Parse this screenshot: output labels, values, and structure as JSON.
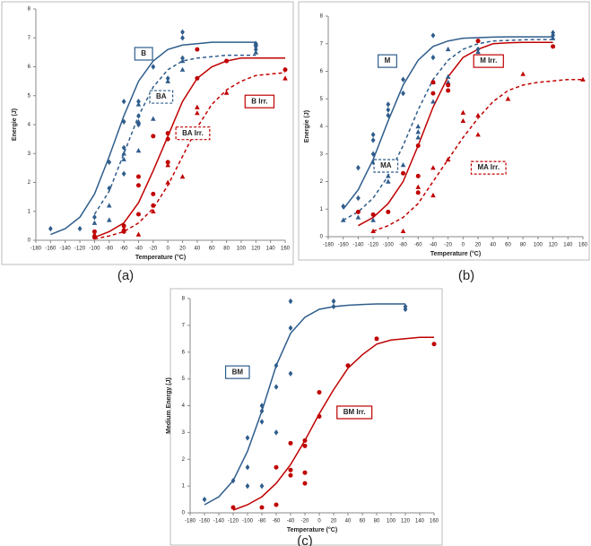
{
  "chart_data": [
    {
      "type": "scatter",
      "caption": "(a)",
      "xlabel": "Temperature (°C)",
      "ylabel": "Energie (J)",
      "xlim": [
        -180,
        160
      ],
      "ylim": [
        0,
        8
      ],
      "xticks": [
        -180,
        -160,
        -140,
        -120,
        -100,
        -80,
        -60,
        -40,
        -20,
        0,
        20,
        40,
        60,
        80,
        100,
        120,
        140,
        160
      ],
      "yticks": [
        0,
        1,
        2,
        3,
        4,
        5,
        6,
        7,
        8
      ],
      "series": [
        {
          "color": "#2f5d8c",
          "marker": "diamond",
          "x": [
            -160,
            -120,
            -100,
            -80,
            -80,
            -60,
            -60,
            -60,
            -60,
            -40,
            -40,
            -40,
            -20,
            -20,
            0,
            20,
            20,
            20,
            120,
            120,
            120
          ],
          "values": [
            0.4,
            0.4,
            0.8,
            1.8,
            2.7,
            4.1,
            4.8,
            3.2,
            2.3,
            4.3,
            4.8,
            4.0,
            6.0,
            5.1,
            5.6,
            7.2,
            7.0,
            6.3,
            6.7,
            6.6,
            6.8
          ]
        },
        {
          "color": "#2f5d8c",
          "marker": "triangle",
          "x": [
            -100,
            -80,
            -80,
            -60,
            -60,
            -40,
            -40,
            -40,
            -20,
            -20,
            0,
            20,
            20,
            120,
            120
          ],
          "values": [
            0.6,
            1.2,
            0.7,
            2.8,
            3.0,
            3.1,
            4.1,
            4.7,
            4.2,
            4.9,
            5.5,
            5.9,
            6.2,
            6.8,
            6.5
          ]
        },
        {
          "color": "#c00000",
          "marker": "circle",
          "x": [
            -100,
            -100,
            -60,
            -60,
            -40,
            -40,
            -40,
            -20,
            -20,
            -20,
            0,
            0,
            0,
            20,
            40,
            40,
            80,
            160
          ],
          "values": [
            0.3,
            0.1,
            0.5,
            0.3,
            2.2,
            1.9,
            0.9,
            3.6,
            1.6,
            1.2,
            3.7,
            3.5,
            2.7,
            3.7,
            5.6,
            6.6,
            6.2,
            5.9
          ]
        },
        {
          "color": "#c00000",
          "marker": "triangle",
          "x": [
            -100,
            -60,
            -40,
            -20,
            0,
            0,
            20,
            40,
            40,
            80,
            160
          ],
          "values": [
            0.2,
            0.4,
            0.2,
            1.0,
            2.0,
            2.6,
            2.2,
            4.4,
            4.6,
            5.1,
            5.6
          ]
        }
      ],
      "fits": [
        {
          "color": "#2f5d8c",
          "style": "solid",
          "x": [
            -160,
            -140,
            -120,
            -100,
            -80,
            -60,
            -40,
            -20,
            0,
            20,
            40,
            60,
            80,
            100,
            120
          ],
          "values": [
            0.2,
            0.4,
            0.8,
            1.6,
            2.9,
            4.3,
            5.5,
            6.2,
            6.6,
            6.75,
            6.8,
            6.85,
            6.85,
            6.85,
            6.85
          ]
        },
        {
          "color": "#2f5d8c",
          "style": "dashed",
          "x": [
            -100,
            -80,
            -60,
            -40,
            -20,
            0,
            20,
            40,
            60,
            80,
            100,
            120
          ],
          "values": [
            0.9,
            1.7,
            3.0,
            4.3,
            5.3,
            5.9,
            6.2,
            6.3,
            6.35,
            6.4,
            6.4,
            6.4
          ]
        },
        {
          "color": "#c00000",
          "style": "solid",
          "x": [
            -100,
            -80,
            -60,
            -40,
            -20,
            0,
            20,
            40,
            60,
            80,
            100,
            120,
            140,
            160
          ],
          "values": [
            0.1,
            0.3,
            0.6,
            1.3,
            2.4,
            3.6,
            4.8,
            5.6,
            6.0,
            6.2,
            6.3,
            6.3,
            6.3,
            6.3
          ]
        },
        {
          "color": "#c00000",
          "style": "dashed",
          "x": [
            -100,
            -80,
            -60,
            -40,
            -20,
            0,
            20,
            40,
            60,
            80,
            100,
            120,
            140,
            160
          ],
          "values": [
            0.05,
            0.15,
            0.3,
            0.6,
            1.1,
            1.9,
            2.9,
            3.9,
            4.7,
            5.2,
            5.5,
            5.7,
            5.75,
            5.8
          ]
        }
      ],
      "labels": [
        {
          "text": "B",
          "color": "#2f5d8c",
          "style": "solid"
        },
        {
          "text": "BA",
          "color": "#2f5d8c",
          "style": "dashed"
        },
        {
          "text": "B Irr.",
          "color": "#c00000",
          "style": "solid"
        },
        {
          "text": "BA Irr.",
          "color": "#c00000",
          "style": "dashed"
        }
      ]
    },
    {
      "type": "scatter",
      "caption": "(b)",
      "xlabel": "Temperature (°C)",
      "ylabel": "Energie (J)",
      "xlim": [
        -180,
        160
      ],
      "ylim": [
        0,
        8
      ],
      "xticks": [
        -180,
        -160,
        -140,
        -120,
        -100,
        -80,
        -60,
        -40,
        -20,
        0,
        20,
        40,
        60,
        80,
        100,
        120,
        140,
        160
      ],
      "yticks": [
        0,
        1,
        2,
        3,
        4,
        5,
        6,
        7,
        8
      ],
      "series": [
        {
          "color": "#2f5d8c",
          "marker": "diamond",
          "x": [
            -160,
            -140,
            -140,
            -120,
            -120,
            -120,
            -120,
            -100,
            -100,
            -100,
            -80,
            -80,
            -40,
            -40,
            20,
            120,
            120
          ],
          "values": [
            1.1,
            2.5,
            1.4,
            3.5,
            3.7,
            3.0,
            2.7,
            4.6,
            4.8,
            4.4,
            5.7,
            5.2,
            7.3,
            6.5,
            6.8,
            7.4,
            7.3
          ]
        },
        {
          "color": "#2f5d8c",
          "marker": "triangle",
          "x": [
            -160,
            -140,
            -120,
            -100,
            -100,
            -80,
            -60,
            -60,
            -60,
            -40,
            -40,
            -20,
            -20,
            -20,
            20,
            120
          ],
          "values": [
            0.6,
            0.7,
            0.6,
            2.0,
            2.2,
            2.6,
            3.6,
            3.8,
            4.0,
            4.9,
            5.6,
            5.6,
            5.8,
            6.8,
            6.7,
            7.2
          ]
        },
        {
          "color": "#c00000",
          "marker": "circle",
          "x": [
            -140,
            -120,
            -100,
            -80,
            -60,
            -60,
            -60,
            -40,
            -40,
            -20,
            -20,
            20,
            120
          ],
          "values": [
            0.9,
            0.8,
            0.9,
            2.3,
            2.2,
            1.6,
            3.3,
            5.2,
            5.6,
            5.3,
            5.5,
            7.1,
            6.9
          ]
        },
        {
          "color": "#c00000",
          "marker": "triangle",
          "x": [
            -120,
            -80,
            -60,
            -40,
            -40,
            -20,
            0,
            0,
            20,
            20,
            60,
            80,
            160
          ],
          "values": [
            0.2,
            0.2,
            1.8,
            1.5,
            2.5,
            2.8,
            4.5,
            4.2,
            4.4,
            3.7,
            5.0,
            5.9,
            5.7
          ]
        }
      ],
      "fits": [
        {
          "color": "#2f5d8c",
          "style": "solid",
          "x": [
            -160,
            -140,
            -120,
            -100,
            -80,
            -60,
            -40,
            -20,
            0,
            20,
            40,
            60,
            80,
            100,
            120
          ],
          "values": [
            1.0,
            1.7,
            2.8,
            4.2,
            5.5,
            6.4,
            6.9,
            7.1,
            7.2,
            7.22,
            7.24,
            7.25,
            7.25,
            7.25,
            7.25
          ]
        },
        {
          "color": "#2f5d8c",
          "style": "dashed",
          "x": [
            -160,
            -140,
            -120,
            -100,
            -80,
            -60,
            -40,
            -20,
            0,
            20,
            40,
            60,
            80,
            100,
            120
          ],
          "values": [
            0.6,
            0.9,
            1.4,
            2.2,
            3.3,
            4.6,
            5.7,
            6.4,
            6.8,
            7.0,
            7.1,
            7.12,
            7.14,
            7.15,
            7.15
          ]
        },
        {
          "color": "#c00000",
          "style": "solid",
          "x": [
            -140,
            -120,
            -100,
            -80,
            -60,
            -40,
            -20,
            0,
            20,
            40,
            60,
            80,
            100,
            120
          ],
          "values": [
            0.4,
            0.7,
            1.2,
            2.0,
            3.3,
            4.7,
            5.8,
            6.5,
            6.8,
            7.0,
            7.03,
            7.05,
            7.05,
            7.05
          ]
        },
        {
          "color": "#c00000",
          "style": "dashed",
          "x": [
            -120,
            -100,
            -80,
            -60,
            -40,
            -20,
            0,
            20,
            40,
            60,
            80,
            100,
            120,
            140,
            160
          ],
          "values": [
            0.2,
            0.4,
            0.7,
            1.2,
            2.0,
            2.8,
            3.6,
            4.3,
            4.9,
            5.3,
            5.5,
            5.6,
            5.65,
            5.7,
            5.7
          ]
        }
      ],
      "labels": [
        {
          "text": "M",
          "color": "#2f5d8c",
          "style": "solid"
        },
        {
          "text": "M Irr.",
          "color": "#c00000",
          "style": "solid"
        },
        {
          "text": "MA",
          "color": "#2f5d8c",
          "style": "dashed"
        },
        {
          "text": "MA Irr.",
          "color": "#c00000",
          "style": "dashed"
        }
      ]
    },
    {
      "type": "scatter",
      "caption": "(c)",
      "xlabel": "Temperature (°C)",
      "ylabel": "Medium Energy (J)",
      "xlim": [
        -180,
        160
      ],
      "ylim": [
        0,
        8
      ],
      "xticks": [
        -180,
        -160,
        -140,
        -120,
        -100,
        -80,
        -60,
        -40,
        -20,
        0,
        20,
        40,
        60,
        80,
        100,
        120,
        140,
        160
      ],
      "yticks": [
        0,
        1,
        2,
        3,
        4,
        5,
        6,
        7,
        8
      ],
      "series": [
        {
          "color": "#2f5d8c",
          "marker": "diamond",
          "x": [
            -160,
            -120,
            -100,
            -100,
            -100,
            -80,
            -80,
            -80,
            -80,
            -60,
            -60,
            -60,
            -40,
            -40,
            -40,
            20,
            20,
            120,
            120
          ],
          "values": [
            0.5,
            1.2,
            2.8,
            1.7,
            1.0,
            3.4,
            3.8,
            4.0,
            1.0,
            3.0,
            4.7,
            5.5,
            5.2,
            6.9,
            7.9,
            7.9,
            7.7,
            7.6,
            7.7
          ]
        },
        {
          "color": "#c00000",
          "marker": "circle",
          "x": [
            -120,
            -80,
            -60,
            -60,
            -40,
            -40,
            -40,
            -20,
            -20,
            -20,
            -20,
            0,
            0,
            40,
            80,
            160
          ],
          "values": [
            0.2,
            0.2,
            0.3,
            1.7,
            1.4,
            1.6,
            2.6,
            2.7,
            2.5,
            1.5,
            1.1,
            3.6,
            4.5,
            5.5,
            6.5,
            6.3
          ]
        }
      ],
      "fits": [
        {
          "color": "#2f5d8c",
          "style": "solid",
          "x": [
            -160,
            -140,
            -120,
            -100,
            -80,
            -60,
            -40,
            -20,
            0,
            20,
            40,
            60,
            80,
            100,
            120
          ],
          "values": [
            0.3,
            0.6,
            1.2,
            2.3,
            3.8,
            5.5,
            6.7,
            7.3,
            7.6,
            7.7,
            7.75,
            7.78,
            7.8,
            7.8,
            7.8
          ]
        },
        {
          "color": "#c00000",
          "style": "solid",
          "x": [
            -120,
            -100,
            -80,
            -60,
            -40,
            -20,
            0,
            20,
            40,
            60,
            80,
            100,
            120,
            140,
            160
          ],
          "values": [
            0.1,
            0.3,
            0.6,
            1.1,
            1.8,
            2.7,
            3.7,
            4.6,
            5.4,
            5.9,
            6.3,
            6.45,
            6.5,
            6.55,
            6.55
          ]
        }
      ],
      "labels": [
        {
          "text": "BM",
          "color": "#2f5d8c",
          "style": "solid"
        },
        {
          "text": "BM Irr.",
          "color": "#c00000",
          "style": "solid"
        }
      ]
    }
  ]
}
